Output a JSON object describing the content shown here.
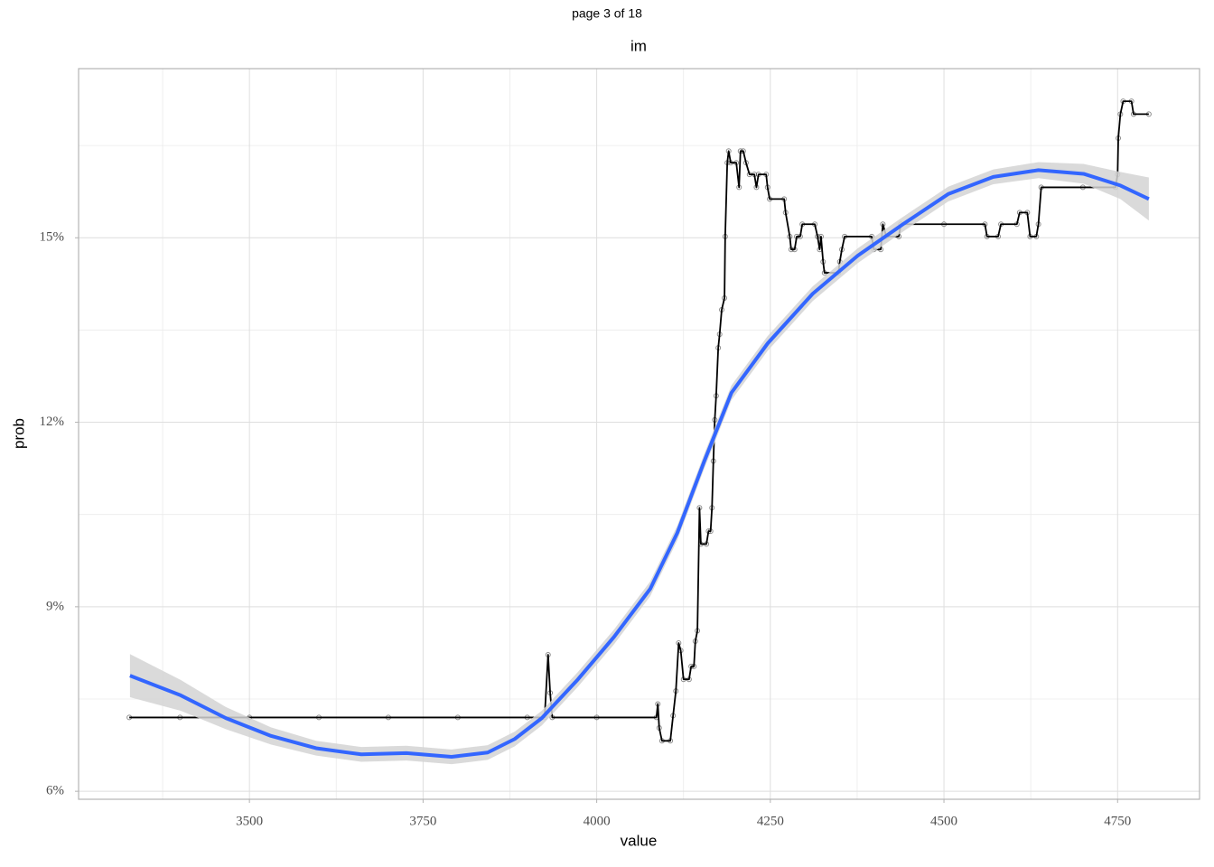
{
  "chart_data": {
    "type": "line",
    "page_label": "page 3 of 18",
    "title": "im",
    "x_label": "value",
    "y_label": "prob",
    "xlim": [
      3254,
      4868
    ],
    "ylim": [
      5.87,
      17.75
    ],
    "xticks": [
      3500,
      3750,
      4000,
      4250,
      4500,
      4750
    ],
    "yticks": [
      {
        "value": 6,
        "label": "6%"
      },
      {
        "value": 9,
        "label": "9%"
      },
      {
        "value": 12,
        "label": "12%"
      },
      {
        "value": 15,
        "label": "15%"
      }
    ],
    "x_minor_ticks": [
      3375,
      3625,
      3875,
      4125,
      4375,
      4625
    ],
    "y_minor_ticks": [
      7.5,
      10.5,
      13.5,
      16.5
    ],
    "grid": true,
    "series": [
      {
        "color": "#000000",
        "markers": true,
        "x": [
          3327,
          3400,
          3500,
          3600,
          3700,
          3800,
          3900,
          3925,
          3930,
          3933,
          3936,
          4000,
          4086,
          4088,
          4090,
          4094,
          4106,
          4110,
          4114,
          4118,
          4121,
          4125,
          4133,
          4136,
          4140,
          4142,
          4145,
          4148,
          4150,
          4158,
          4161,
          4164,
          4166,
          4168,
          4170,
          4172,
          4175,
          4177,
          4180,
          4184,
          4185,
          4188,
          4190,
          4193,
          4201,
          4205,
          4207,
          4211,
          4215,
          4220,
          4227,
          4230,
          4233,
          4244,
          4246,
          4249,
          4270,
          4272,
          4278,
          4280,
          4285,
          4288,
          4293,
          4296,
          4314,
          4318,
          4321,
          4323,
          4326,
          4328,
          4348,
          4350,
          4353,
          4357,
          4396,
          4399,
          4409,
          4412,
          4417,
          4435,
          4438,
          4500,
          4559,
          4562,
          4578,
          4582,
          4605,
          4609,
          4620,
          4624,
          4633,
          4636,
          4640,
          4700,
          4747,
          4750,
          4751,
          4754,
          4758,
          4770,
          4773,
          4795
        ],
        "values": [
          7.2,
          7.2,
          7.2,
          7.2,
          7.2,
          7.2,
          7.2,
          7.2,
          8.22,
          7.6,
          7.2,
          7.2,
          7.2,
          7.42,
          7.03,
          6.82,
          6.82,
          7.23,
          7.63,
          8.41,
          8.29,
          7.82,
          7.82,
          8.03,
          8.03,
          8.44,
          8.61,
          10.61,
          10.02,
          10.02,
          10.23,
          10.23,
          10.61,
          11.37,
          12.04,
          12.43,
          13.21,
          13.43,
          13.83,
          14.02,
          15.02,
          16.22,
          16.41,
          16.22,
          16.22,
          15.82,
          16.41,
          16.41,
          16.22,
          16.03,
          16.03,
          15.82,
          16.03,
          16.03,
          15.82,
          15.63,
          15.63,
          15.41,
          15.02,
          14.81,
          14.81,
          15.02,
          15.02,
          15.22,
          15.22,
          15.02,
          14.81,
          15.02,
          14.61,
          14.43,
          14.43,
          14.61,
          14.81,
          15.02,
          15.02,
          14.81,
          14.81,
          15.22,
          15.02,
          15.02,
          15.22,
          15.22,
          15.22,
          15.02,
          15.02,
          15.22,
          15.22,
          15.41,
          15.41,
          15.02,
          15.02,
          15.22,
          15.82,
          15.82,
          15.82,
          16.03,
          16.62,
          17.01,
          17.22,
          17.22,
          17.01,
          17.01
        ]
      },
      {
        "color": "#3366ff",
        "band_color": "#d3d3d3",
        "x": [
          3328,
          3401,
          3466,
          3531,
          3596,
          3661,
          3726,
          3791,
          3843,
          3882,
          3921,
          3973,
          4025,
          4077,
          4116,
          4155,
          4194,
          4246,
          4311,
          4376,
          4441,
          4506,
          4571,
          4636,
          4701,
          4754,
          4795
        ],
        "values": [
          7.88,
          7.56,
          7.19,
          6.9,
          6.7,
          6.6,
          6.62,
          6.56,
          6.63,
          6.85,
          7.19,
          7.82,
          8.51,
          9.29,
          10.2,
          11.37,
          12.48,
          13.28,
          14.09,
          14.71,
          15.22,
          15.71,
          15.99,
          16.1,
          16.04,
          15.85,
          15.63
        ],
        "lower": [
          7.53,
          7.31,
          7.01,
          6.76,
          6.58,
          6.48,
          6.5,
          6.44,
          6.51,
          6.73,
          7.07,
          7.7,
          8.39,
          9.17,
          10.08,
          11.25,
          12.36,
          13.16,
          13.97,
          14.59,
          15.1,
          15.59,
          15.87,
          15.97,
          15.88,
          15.63,
          15.28
        ],
        "upper": [
          8.23,
          7.81,
          7.37,
          7.04,
          6.82,
          6.72,
          6.74,
          6.68,
          6.75,
          6.97,
          7.31,
          7.94,
          8.63,
          9.41,
          10.32,
          11.49,
          12.6,
          13.4,
          14.21,
          14.83,
          15.34,
          15.83,
          16.11,
          16.23,
          16.2,
          16.07,
          15.98
        ]
      }
    ]
  }
}
